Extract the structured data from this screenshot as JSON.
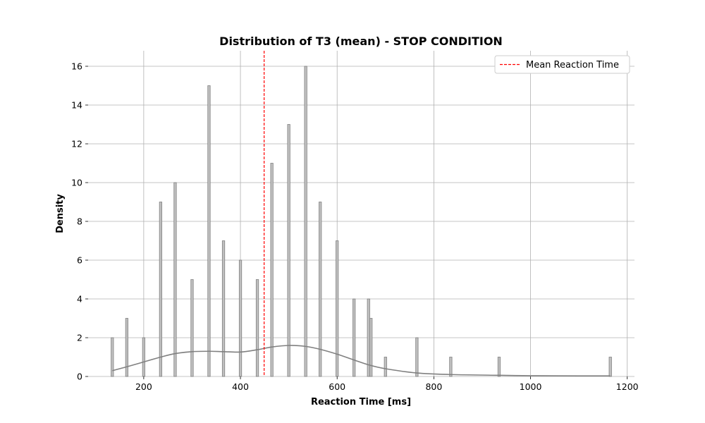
{
  "chart_data": {
    "type": "bar",
    "title": "Distribution of T3 (mean) - STOP CONDITION",
    "xlabel": "Reaction Time [ms]",
    "ylabel": "Density",
    "xlim": [
      85,
      1215
    ],
    "ylim": [
      0,
      16.8
    ],
    "xticks": [
      200,
      400,
      600,
      800,
      1000,
      1200
    ],
    "yticks": [
      0,
      2,
      4,
      6,
      8,
      10,
      12,
      14,
      16
    ],
    "grid": true,
    "legend_position": "top-right",
    "bars": [
      {
        "x": 135,
        "value": 2
      },
      {
        "x": 165,
        "value": 3
      },
      {
        "x": 200,
        "value": 2
      },
      {
        "x": 235,
        "value": 9
      },
      {
        "x": 265,
        "value": 10
      },
      {
        "x": 300,
        "value": 5
      },
      {
        "x": 335,
        "value": 15
      },
      {
        "x": 365,
        "value": 7
      },
      {
        "x": 400,
        "value": 6
      },
      {
        "x": 435,
        "value": 5
      },
      {
        "x": 465,
        "value": 11
      },
      {
        "x": 500,
        "value": 13
      },
      {
        "x": 535,
        "value": 16
      },
      {
        "x": 565,
        "value": 9
      },
      {
        "x": 600,
        "value": 7
      },
      {
        "x": 635,
        "value": 4
      },
      {
        "x": 665,
        "value": 4
      },
      {
        "x": 670,
        "value": 3
      },
      {
        "x": 700,
        "value": 1
      },
      {
        "x": 765,
        "value": 2
      },
      {
        "x": 835,
        "value": 1
      },
      {
        "x": 935,
        "value": 1
      },
      {
        "x": 1165,
        "value": 1
      }
    ],
    "bar_width": 5,
    "kde": {
      "x": [
        135,
        165,
        200,
        235,
        265,
        300,
        335,
        365,
        400,
        435,
        465,
        500,
        535,
        565,
        600,
        635,
        665,
        700,
        765,
        835,
        935,
        1000,
        1100,
        1165
      ],
      "y": [
        0.3,
        0.5,
        0.75,
        1.0,
        1.18,
        1.28,
        1.3,
        1.28,
        1.26,
        1.38,
        1.52,
        1.6,
        1.55,
        1.4,
        1.15,
        0.85,
        0.6,
        0.4,
        0.18,
        0.1,
        0.06,
        0.04,
        0.03,
        0.03
      ]
    },
    "mean_line": {
      "x": 449,
      "label": "Mean Reaction Time"
    },
    "colors": {
      "bar_fill": "#c0c0c0",
      "bar_edge": "#808080",
      "kde": "#808080",
      "mean_line": "#ff0000",
      "grid": "#b0b0b0"
    }
  }
}
